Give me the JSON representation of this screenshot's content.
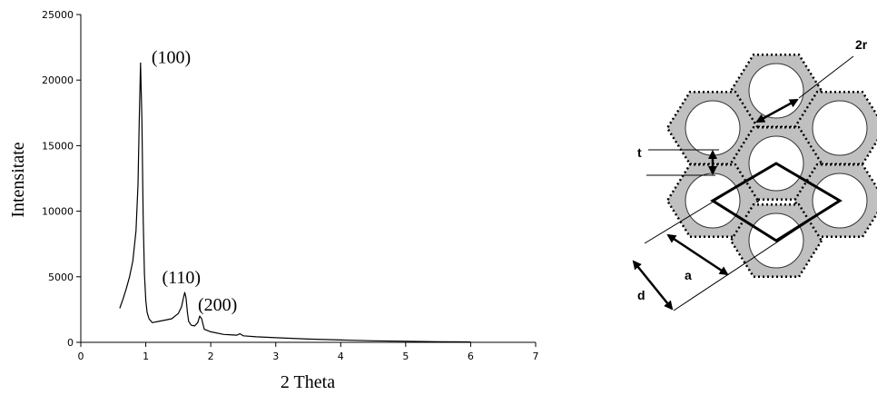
{
  "chart_data": {
    "type": "line",
    "xlabel": "2 Theta",
    "ylabel": "Intensitate",
    "xlim": [
      0,
      7
    ],
    "ylim": [
      0,
      25000
    ],
    "xticks": [
      "0",
      "1",
      "2",
      "3",
      "4",
      "5",
      "6",
      "7"
    ],
    "yticks": [
      "0",
      "5000",
      "10000",
      "15000",
      "20000",
      "25000"
    ],
    "grid": false,
    "series": [
      {
        "x": [
          0.6,
          0.65,
          0.7,
          0.75,
          0.8,
          0.85,
          0.88,
          0.9,
          0.92,
          0.94,
          0.96,
          0.98,
          1.0,
          1.02,
          1.05,
          1.1,
          1.2,
          1.3,
          1.4,
          1.5,
          1.55,
          1.58,
          1.6,
          1.62,
          1.64,
          1.66,
          1.7,
          1.75,
          1.8,
          1.83,
          1.86,
          1.9,
          2.0,
          2.2,
          2.4,
          2.45,
          2.5,
          2.7,
          3.0,
          3.5,
          4.0,
          4.5,
          5.0,
          5.5,
          6.0
        ],
        "y": [
          2600,
          3300,
          4100,
          5000,
          6200,
          8500,
          12000,
          17000,
          21300,
          17000,
          9500,
          5200,
          3200,
          2300,
          1800,
          1500,
          1600,
          1700,
          1800,
          2200,
          2700,
          3400,
          3800,
          3400,
          2300,
          1600,
          1300,
          1250,
          1500,
          2000,
          1800,
          1000,
          800,
          600,
          550,
          650,
          500,
          420,
          350,
          250,
          180,
          120,
          80,
          50,
          30
        ]
      }
    ],
    "annotations": [
      {
        "text": "(100)",
        "x": 0.92,
        "y": 21300
      },
      {
        "text": "(110)",
        "x": 1.6,
        "y": 3800
      },
      {
        "text": "(200)",
        "x": 1.83,
        "y": 2000
      }
    ]
  },
  "diagram": {
    "labels": {
      "two_r": "2r",
      "t": "t",
      "a": "a",
      "d": "d"
    },
    "fill_color": "#c0c0c0",
    "line_color": "#000000"
  }
}
